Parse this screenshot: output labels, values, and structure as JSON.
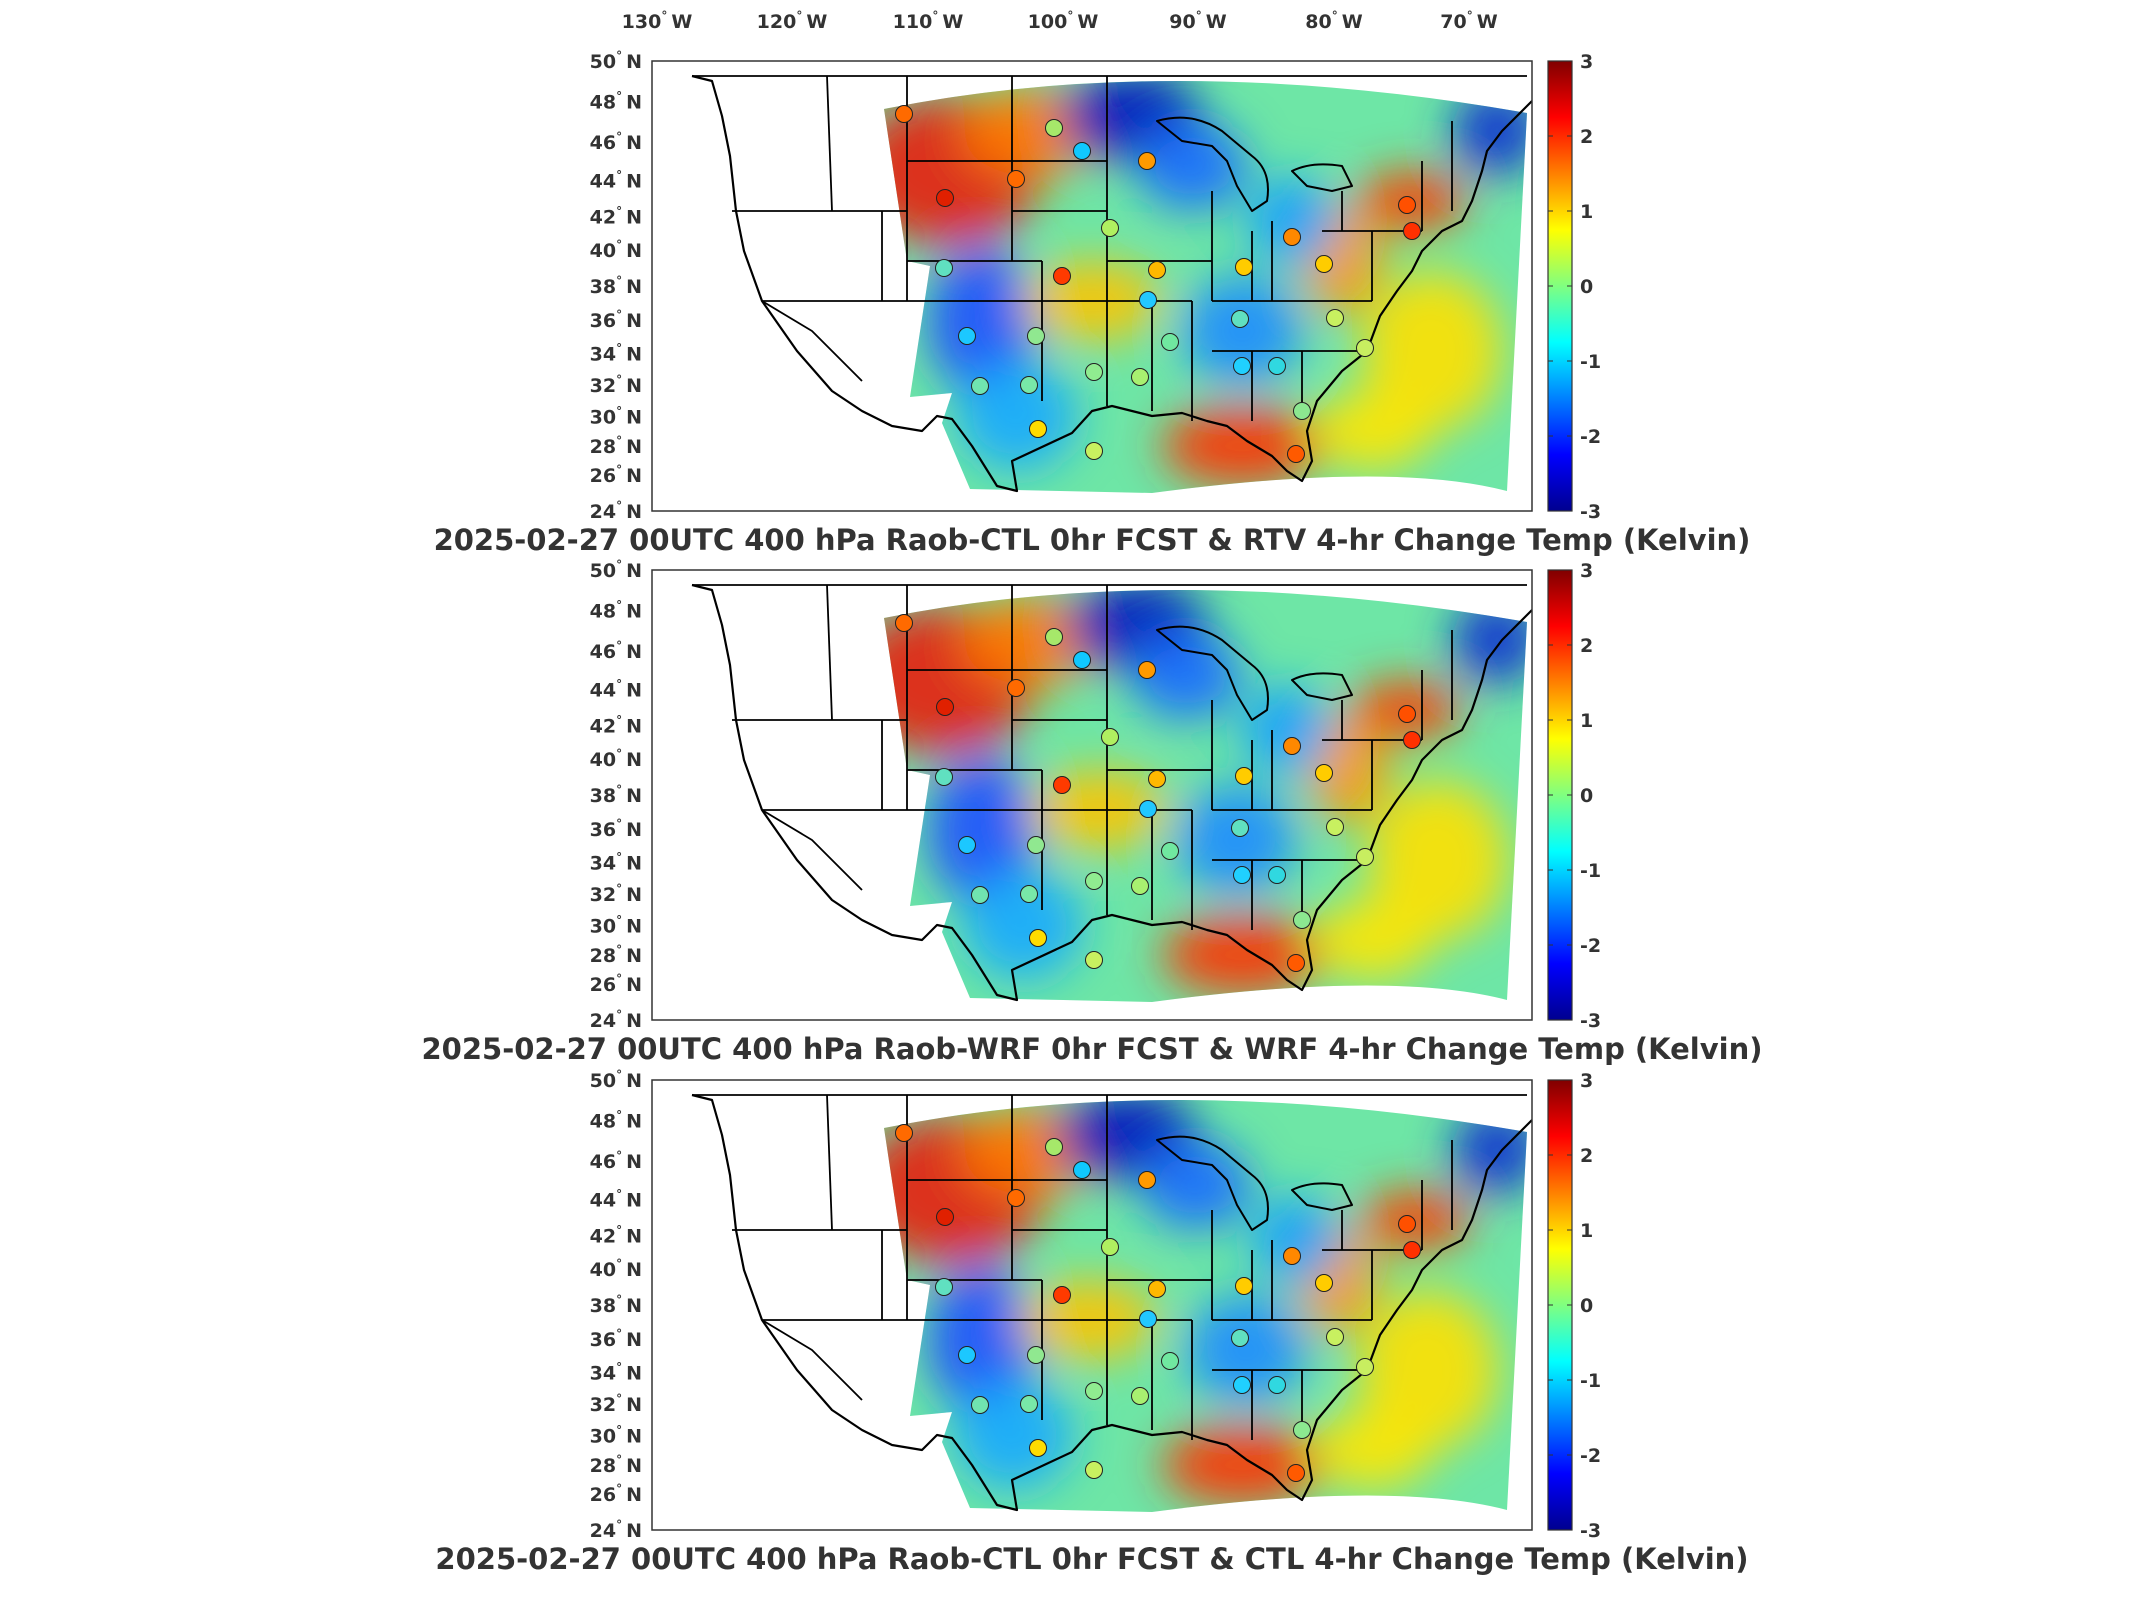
{
  "lon_ticks": [
    {
      "num": "130",
      "dir": "W"
    },
    {
      "num": "120",
      "dir": "W"
    },
    {
      "num": "110",
      "dir": "W"
    },
    {
      "num": "100",
      "dir": "W"
    },
    {
      "num": "90",
      "dir": "W"
    },
    {
      "num": "80",
      "dir": "W"
    },
    {
      "num": "70",
      "dir": "W"
    }
  ],
  "lat_ticks": [
    {
      "num": "50",
      "dir": "N"
    },
    {
      "num": "48",
      "dir": "N"
    },
    {
      "num": "46",
      "dir": "N"
    },
    {
      "num": "44",
      "dir": "N"
    },
    {
      "num": "42",
      "dir": "N"
    },
    {
      "num": "40",
      "dir": "N"
    },
    {
      "num": "38",
      "dir": "N"
    },
    {
      "num": "36",
      "dir": "N"
    },
    {
      "num": "34",
      "dir": "N"
    },
    {
      "num": "32",
      "dir": "N"
    },
    {
      "num": "30",
      "dir": "N"
    },
    {
      "num": "28",
      "dir": "N"
    },
    {
      "num": "26",
      "dir": "N"
    },
    {
      "num": "24",
      "dir": "N"
    }
  ],
  "colorbar": {
    "ticks": [
      "3",
      "2",
      "1",
      "0",
      "-1",
      "-2",
      "-3"
    ],
    "min": -3,
    "max": 3,
    "colormap": [
      "#00008f",
      "#0000ff",
      "#0080ff",
      "#00ffff",
      "#80ff80",
      "#ffff00",
      "#ff8000",
      "#ff0000",
      "#800000"
    ]
  },
  "panels": [
    {
      "title": "2025-02-27 00UTC 400 hPa Raob-CTL 0hr FCST & RTV 4-hr Change Temp (Kelvin)"
    },
    {
      "title": "2025-02-27 00UTC 400 hPa Raob-WRF 0hr FCST & WRF 4-hr Change Temp (Kelvin)"
    },
    {
      "title": "2025-02-27 00UTC 400 hPa Raob-CTL 0hr FCST & CTL 4-hr Change Temp (Kelvin)"
    }
  ]
}
